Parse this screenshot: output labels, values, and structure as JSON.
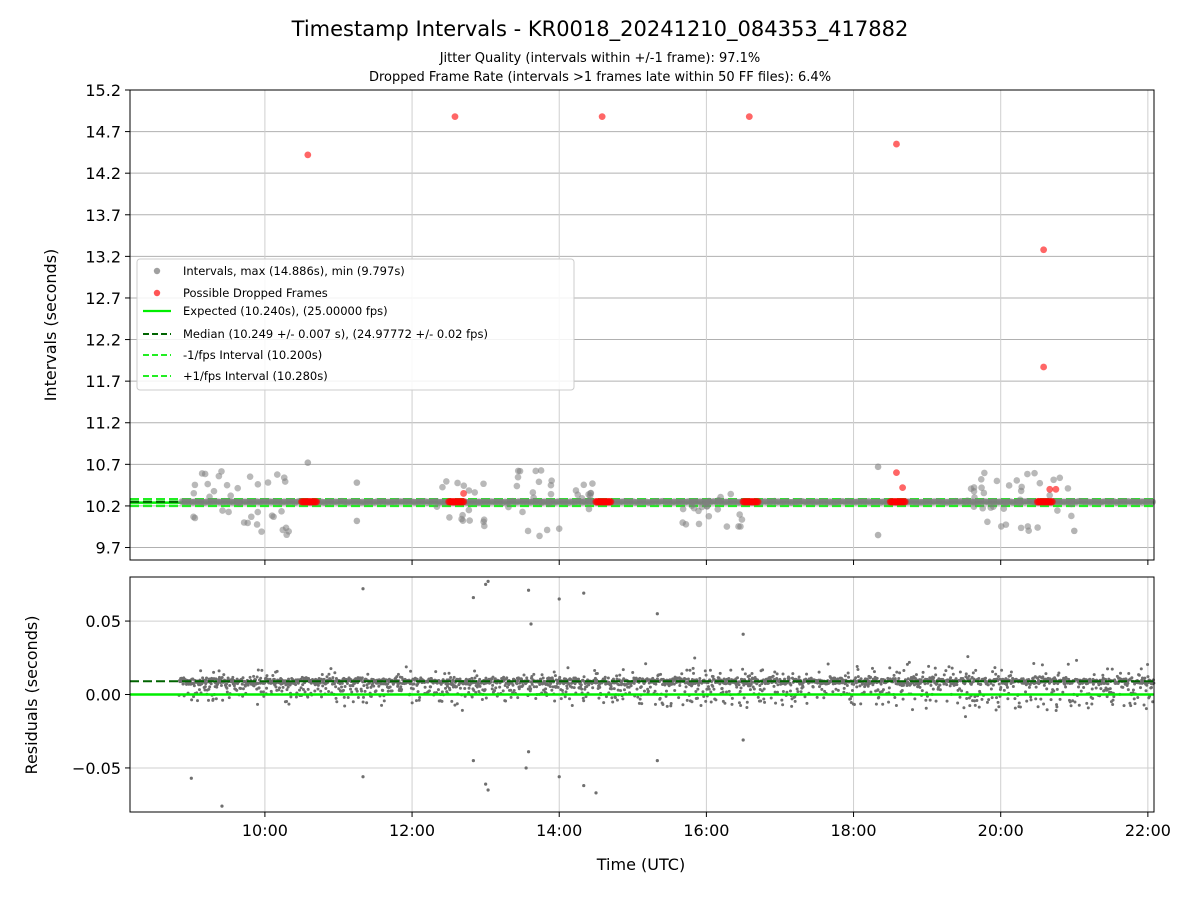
{
  "chart_data": {
    "type": "scatter",
    "title": "Timestamp Intervals - KR0018_20241210_084353_417882",
    "subtitle_lines": [
      "Jitter Quality (intervals within +/-1 frame): 97.1%",
      "Dropped Frame Rate (intervals >1 frames late within 50 FF files): 6.4%"
    ],
    "xlabel": "Time (UTC)",
    "x_time_range": [
      "08:10",
      "22:05"
    ],
    "x_ticks": [
      "10:00",
      "12:00",
      "14:00",
      "16:00",
      "18:00",
      "20:00",
      "22:00"
    ],
    "grid": true,
    "colors": {
      "intervals": "#808080",
      "dropped": "#ff0000",
      "expected": "#00ee00",
      "median": "#006400",
      "fps_bounds": "#22ee22"
    },
    "top": {
      "ylabel": "Intervals (seconds)",
      "ylim": [
        9.55,
        15.2
      ],
      "y_ticks": [
        "9.7",
        "10.2",
        "10.7",
        "11.2",
        "11.7",
        "12.2",
        "12.7",
        "13.2",
        "13.7",
        "14.2",
        "14.7",
        "15.2"
      ],
      "legend_position": "center-left",
      "legend": [
        {
          "label": "Intervals, max (14.886s), min (9.797s)",
          "kind": "marker",
          "color": "#a0a0a0"
        },
        {
          "label": "Possible Dropped Frames",
          "kind": "marker",
          "color": "#ff5555"
        },
        {
          "label": "Expected (10.240s), (25.00000 fps)",
          "kind": "solid",
          "color": "#00ee00"
        },
        {
          "label": "Median (10.249 +/- 0.007 s), (24.97772 +/- 0.02 fps)",
          "kind": "dashed",
          "color": "#006400"
        },
        {
          "label": "-1/fps Interval (10.200s)",
          "kind": "dashed",
          "color": "#22ee22"
        },
        {
          "label": "+1/fps Interval (10.280s)",
          "kind": "dashed",
          "color": "#22ee22"
        }
      ],
      "expected": 10.24,
      "median": 10.249,
      "minus_fps": 10.2,
      "plus_fps": 10.28,
      "dropped_points": [
        {
          "x": "10:35",
          "y": 14.42
        },
        {
          "x": "12:35",
          "y": 14.88
        },
        {
          "x": "14:35",
          "y": 14.88
        },
        {
          "x": "16:35",
          "y": 14.88
        },
        {
          "x": "18:35",
          "y": 14.55
        },
        {
          "x": "20:35",
          "y": 13.28
        },
        {
          "x": "20:35",
          "y": 11.87
        },
        {
          "x": "18:35",
          "y": 10.6
        },
        {
          "x": "18:40",
          "y": 10.42
        },
        {
          "x": "12:42",
          "y": 10.35
        },
        {
          "x": "20:40",
          "y": 10.4
        },
        {
          "x": "20:45",
          "y": 10.4
        }
      ],
      "dropped_clusters": [
        {
          "from": "10:30",
          "to": "10:42",
          "y": 10.25
        },
        {
          "from": "12:30",
          "to": "12:42",
          "y": 10.25
        },
        {
          "from": "14:30",
          "to": "14:42",
          "y": 10.25
        },
        {
          "from": "16:30",
          "to": "16:42",
          "y": 10.25
        },
        {
          "from": "18:30",
          "to": "18:42",
          "y": 10.25
        },
        {
          "from": "20:30",
          "to": "20:42",
          "y": 10.25
        }
      ],
      "interval_data_range": {
        "from": "08:52",
        "to": "22:05"
      },
      "interval_scatter_groups": [
        {
          "from": "09:00",
          "to": "10:20",
          "y_min": 9.85,
          "y_max": 10.65
        },
        {
          "from": "12:20",
          "to": "13:00",
          "y_min": 9.95,
          "y_max": 10.5
        },
        {
          "from": "13:15",
          "to": "14:00",
          "y_min": 9.8,
          "y_max": 10.65
        },
        {
          "from": "14:10",
          "to": "14:35",
          "y_min": 10.05,
          "y_max": 10.5
        },
        {
          "from": "15:40",
          "to": "16:30",
          "y_min": 9.95,
          "y_max": 10.45
        },
        {
          "from": "19:30",
          "to": "21:00",
          "y_min": 9.9,
          "y_max": 10.6
        }
      ],
      "interval_outliers": [
        {
          "x": "10:35",
          "y": 10.72
        },
        {
          "x": "18:20",
          "y": 10.67
        },
        {
          "x": "18:20",
          "y": 9.85
        },
        {
          "x": "21:00",
          "y": 9.9
        },
        {
          "x": "11:15",
          "y": 10.02
        },
        {
          "x": "11:15",
          "y": 10.48
        }
      ]
    },
    "bottom": {
      "ylabel": "Residuals (seconds)",
      "ylim": [
        -0.08,
        0.08
      ],
      "y_ticks": [
        "−0.05",
        "0.00",
        "0.05"
      ],
      "median_line": 0.009,
      "zero_line": 0.0,
      "residual_data_range": {
        "from": "08:50",
        "to": "22:05"
      },
      "residual_band": {
        "center": 0.005,
        "spread": 0.02
      },
      "outliers": [
        {
          "x": "09:00",
          "y": -0.057
        },
        {
          "x": "09:25",
          "y": -0.076
        },
        {
          "x": "11:20",
          "y": 0.072
        },
        {
          "x": "11:20",
          "y": -0.056
        },
        {
          "x": "12:50",
          "y": 0.066
        },
        {
          "x": "13:00",
          "y": 0.075
        },
        {
          "x": "13:02",
          "y": 0.077
        },
        {
          "x": "13:00",
          "y": -0.061
        },
        {
          "x": "13:02",
          "y": -0.065
        },
        {
          "x": "12:50",
          "y": -0.045
        },
        {
          "x": "13:35",
          "y": 0.071
        },
        {
          "x": "13:37",
          "y": 0.048
        },
        {
          "x": "13:35",
          "y": -0.039
        },
        {
          "x": "13:33",
          "y": -0.05
        },
        {
          "x": "14:00",
          "y": 0.065
        },
        {
          "x": "14:00",
          "y": -0.056
        },
        {
          "x": "14:20",
          "y": 0.069
        },
        {
          "x": "14:20",
          "y": -0.062
        },
        {
          "x": "14:30",
          "y": -0.067
        },
        {
          "x": "15:20",
          "y": 0.055
        },
        {
          "x": "15:20",
          "y": -0.045
        },
        {
          "x": "16:30",
          "y": 0.041
        },
        {
          "x": "16:30",
          "y": -0.031
        }
      ]
    }
  }
}
